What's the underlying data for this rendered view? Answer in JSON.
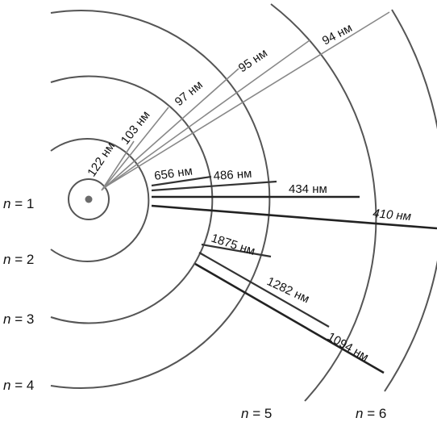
{
  "levels": {
    "n1": "1",
    "n2": "2",
    "n3": "3",
    "n4": "4",
    "n5": "5",
    "n6": "6",
    "symbol": "n",
    "eq": "= "
  },
  "series": {
    "lyman": [
      "122 нм",
      "103 нм",
      "97 нм",
      "95 нм",
      "94 нм"
    ],
    "balmer": [
      "656 нм",
      "486 нм",
      "434 нм",
      "410 нм"
    ],
    "paschen": [
      "1875 нм",
      "1282 нм",
      "1094 нм"
    ]
  },
  "colors": {
    "orbit": "#555555",
    "text": "#111111"
  }
}
